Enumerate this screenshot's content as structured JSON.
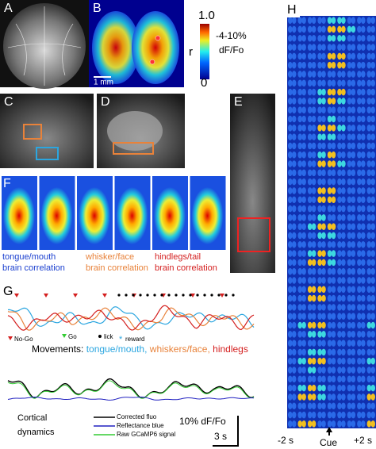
{
  "panel_labels": [
    "A",
    "B",
    "C",
    "D",
    "E",
    "F",
    "G",
    "H"
  ],
  "panel_b": {
    "colorbar_max": "1.0",
    "colorbar_min": "0",
    "r_label": "r",
    "df_range": "-4-10%",
    "df_unit": "dF/Fo",
    "scale": "1 mm"
  },
  "panel_f": {
    "captions": [
      {
        "line1": "tongue/mouth",
        "line2": "brain correlation"
      },
      {
        "line1": "whisker/face",
        "line2": "brain correlation"
      },
      {
        "line1": "hindlegs/tail",
        "line2": "brain correlation"
      }
    ]
  },
  "panel_g": {
    "events": [
      "No-Go",
      "Go",
      "lick",
      "reward"
    ],
    "movements_label": "Movements:",
    "movements": [
      "tongue/mouth,",
      "whiskers/face,",
      "hindlegs"
    ],
    "cortical_label": [
      "Cortical",
      "dynamics"
    ],
    "traces": [
      "Corrected fluo",
      "Reflectance blue",
      "Raw GCaMP6 signal"
    ],
    "scale_y": "10% dF/Fo",
    "scale_x": "3 s"
  },
  "panel_h": {
    "time_labels": [
      "-2 s",
      "Cue",
      "+2 s"
    ]
  }
}
